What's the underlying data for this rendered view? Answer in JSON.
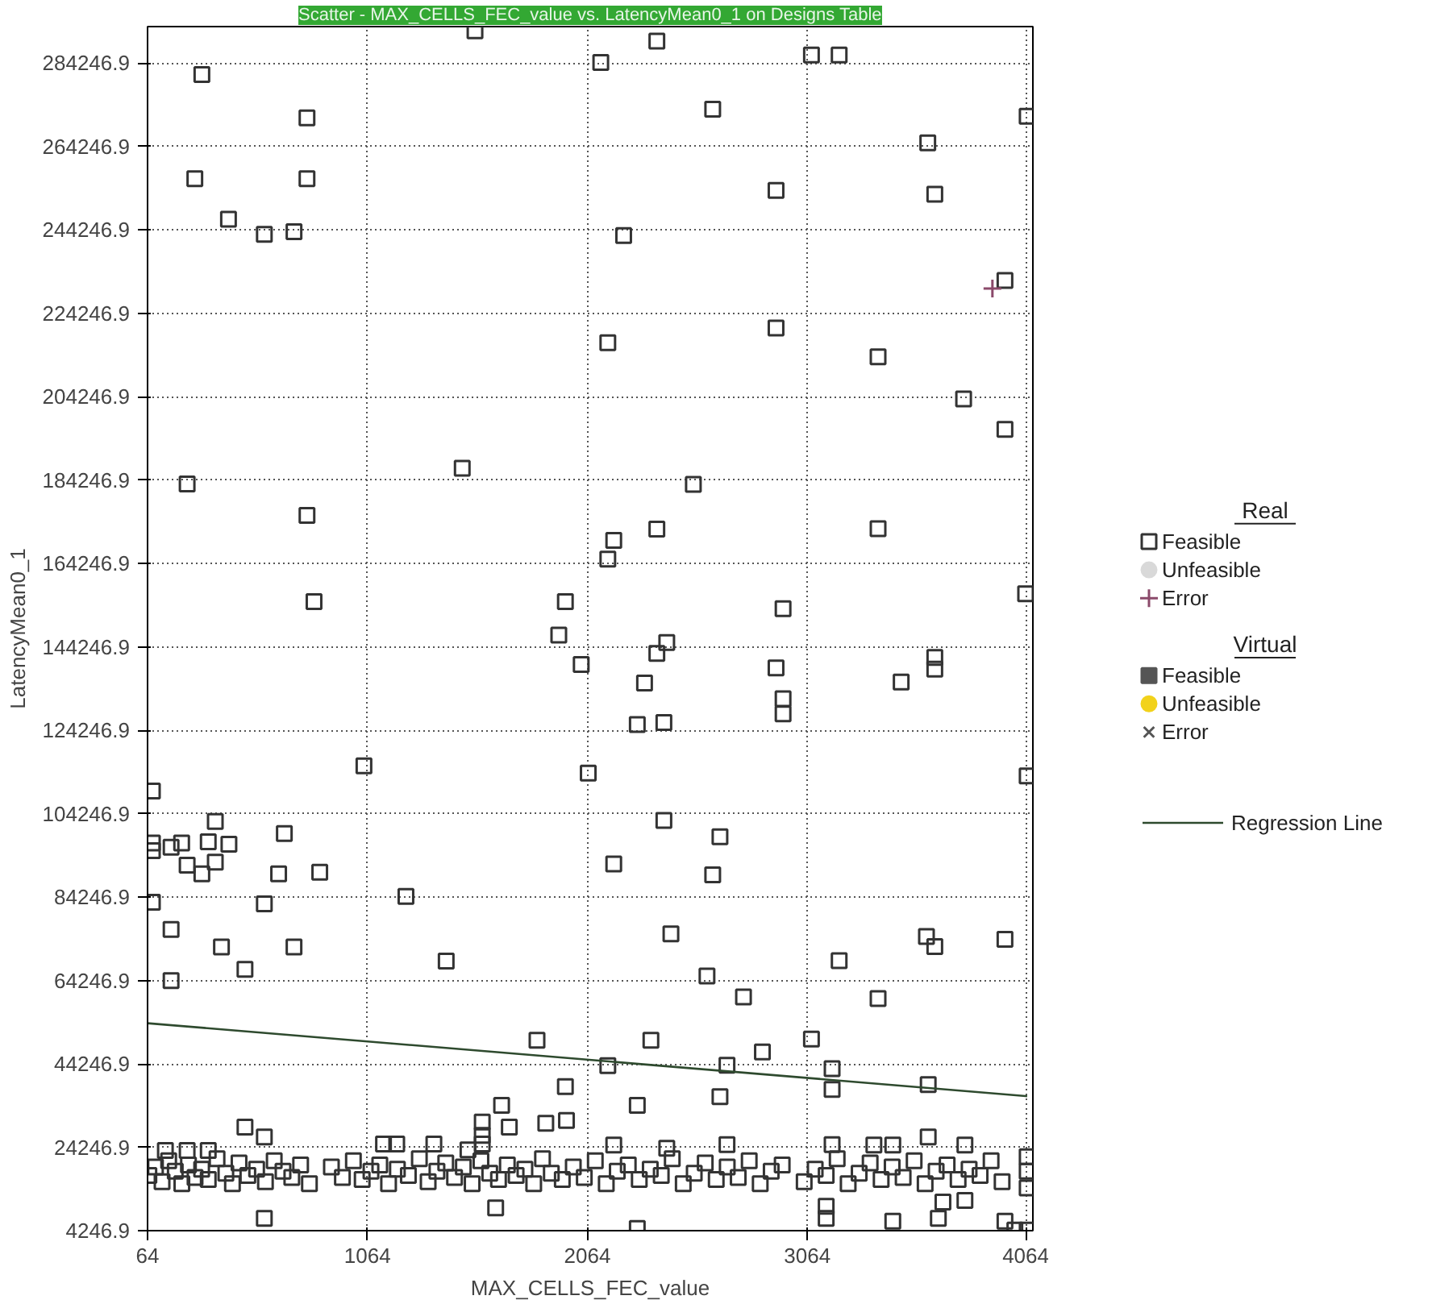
{
  "chart_data": {
    "type": "scatter",
    "title": "Scatter - MAX_CELLS_FEC_value vs. LatencyMean0_1 on Designs Table",
    "xlabel": "MAX_CELLS_FEC_value",
    "ylabel": "LatencyMean0_1",
    "legend_title": "Real",
    "annotations": [
      "Virtual"
    ],
    "xlim": [
      64,
      4090
    ],
    "ylim": [
      4246.9,
      293000
    ],
    "xticks": [
      64,
      1064,
      2064,
      3064,
      4064
    ],
    "yticks": [
      {
        "value": 4246.9,
        "label": "4246.9"
      },
      {
        "value": 24246.9,
        "label": "24246.9"
      },
      {
        "value": 44246.9,
        "label": "44246.9"
      },
      {
        "value": 64246.9,
        "label": "64246.9"
      },
      {
        "value": 84246.9,
        "label": "84246.9"
      },
      {
        "value": 104246.9,
        "label": "104246.9"
      },
      {
        "value": 124246.9,
        "label": "124246.9"
      },
      {
        "value": 144246.9,
        "label": "144246.9"
      },
      {
        "value": 164246.9,
        "label": "164246.9"
      },
      {
        "value": 184246.9,
        "label": "184246.9"
      },
      {
        "value": 204246.9,
        "label": "204246.9"
      },
      {
        "value": 224246.9,
        "label": "224246.9"
      },
      {
        "value": 244246.9,
        "label": "244246.9"
      },
      {
        "value": 264246.9,
        "label": "264246.9"
      },
      {
        "value": 284246.9,
        "label": "284246.9"
      }
    ],
    "grid": true,
    "legend": "right",
    "series": [
      {
        "name": "Feasible",
        "color": "#333333",
        "marker": "square",
        "x": [
          1553,
          311,
          789,
          279,
          789,
          432,
          595,
          730,
          1495,
          244,
          789,
          821,
          1964,
          1934,
          2380,
          2125,
          3083,
          3209,
          2634,
          4064,
          3612,
          2922,
          3644,
          2229,
          3963,
          2157,
          2922,
          3386,
          3775,
          3963,
          2546,
          2380,
          2184,
          2157,
          3386,
          4057,
          2954,
          2425,
          2380,
          2036,
          2922,
          2324,
          2954,
          2954,
          3491,
          3644,
          3644,
          2291,
          2412,
          2068,
          4064,
          2412,
          2667,
          2184,
          2634,
          2444,
          2608,
          2774,
          3209,
          3386,
          3606,
          3644,
          3963,
          2353,
          2860,
          3083,
          2157,
          2699,
          3177,
          3177,
          3614,
          2291,
          2667,
          3614,
          2291,
          3453,
          3150,
          3660,
          3681,
          3781,
          3963,
          4008,
          4064,
          3150,
          1048,
          86,
          86,
          86,
          171,
          219,
          372,
          340,
          434,
          244,
          311,
          372,
          686,
          660,
          847,
          86,
          595,
          1239,
          171,
          400,
          730,
          507,
          171,
          1422,
          1835,
          1964,
          1674,
          1586,
          1709,
          1875,
          1969,
          507,
          595,
          595,
          1647,
          1137,
          1197,
          1366,
          145,
          244,
          340,
          1586,
          1586,
          1521,
          2184,
          2699,
          3177,
          3367,
          3453,
          3781,
          2425,
          70,
          100,
          130,
          160,
          190,
          220,
          250,
          280,
          310,
          340,
          380,
          420,
          450,
          480,
          520,
          560,
          600,
          640,
          680,
          720,
          760,
          800,
          900,
          950,
          1000,
          1040,
          1080,
          1120,
          1160,
          1200,
          1250,
          1300,
          1340,
          1380,
          1420,
          1460,
          1500,
          1540,
          1580,
          1620,
          1660,
          1700,
          1740,
          1780,
          1820,
          1860,
          1900,
          1950,
          2000,
          2050,
          2100,
          2150,
          2200,
          2250,
          2300,
          2350,
          2400,
          2450,
          2500,
          2550,
          2600,
          2650,
          2700,
          2750,
          2800,
          2850,
          2900,
          2950,
          3050,
          3100,
          3150,
          3200,
          3250,
          3300,
          3350,
          3400,
          3450,
          3500,
          3550,
          3600,
          3650,
          3700,
          3750,
          3800,
          3850,
          3900,
          3950,
          4064,
          4064,
          4064
        ],
        "values": [
          292000,
          281500,
          271100,
          256500,
          256500,
          246800,
          243200,
          243800,
          187100,
          183300,
          175800,
          155100,
          155100,
          147100,
          289500,
          284400,
          286200,
          286200,
          273200,
          271500,
          265100,
          253700,
          252800,
          242900,
          232100,
          217200,
          220700,
          213800,
          203700,
          196400,
          183200,
          172500,
          169800,
          165300,
          172600,
          157000,
          153400,
          145300,
          142700,
          140000,
          139200,
          135600,
          131800,
          128200,
          135800,
          141700,
          138900,
          125600,
          126100,
          114000,
          113300,
          102600,
          98700,
          92200,
          89600,
          75400,
          65300,
          60300,
          69000,
          59900,
          74800,
          72400,
          74100,
          49900,
          47100,
          50200,
          43800,
          43900,
          43100,
          38100,
          39300,
          34300,
          36400,
          26700,
          4800,
          6500,
          7200,
          7200,
          11100,
          11500,
          6500,
          4400,
          4400,
          10100,
          115700,
          109700,
          97200,
          83000,
          96200,
          97200,
          102400,
          97500,
          96900,
          91900,
          89800,
          92600,
          99500,
          89800,
          90200,
          95400,
          82600,
          84400,
          76500,
          72300,
          72300,
          66900,
          64200,
          68900,
          49900,
          38800,
          34300,
          30300,
          29100,
          30000,
          30700,
          29100,
          26700,
          7200,
          9700,
          25000,
          25000,
          25000,
          23500,
          23500,
          23500,
          27100,
          25000,
          23600,
          24800,
          24900,
          24900,
          24800,
          24800,
          24800,
          24000,
          17500,
          19500,
          16000,
          21000,
          18500,
          15500,
          20000,
          17000,
          19000,
          16500,
          21500,
          18000,
          15500,
          20500,
          17500,
          19000,
          16000,
          21000,
          18500,
          17000,
          20000,
          15500,
          19500,
          17000,
          21000,
          16500,
          18500,
          20000,
          15500,
          19000,
          17500,
          21500,
          16000,
          18500,
          20500,
          17000,
          19500,
          15500,
          21000,
          18000,
          16500,
          20000,
          17500,
          19000,
          15500,
          21500,
          18000,
          16500,
          19500,
          17000,
          21000,
          15500,
          18500,
          20000,
          16500,
          19000,
          17500,
          21500,
          15500,
          18000,
          20500,
          16500,
          19500,
          17000,
          21000,
          15500,
          18500,
          20000,
          16000,
          19000,
          17500,
          21500,
          15500,
          18000,
          20500,
          16500,
          19500,
          17000,
          21000,
          15500,
          18500,
          20000,
          16500,
          19000,
          17500,
          21000,
          16000,
          14500,
          18500,
          22000
        ]
      },
      {
        "name": "Unfeasible",
        "color": "#d9d9d9",
        "marker": "circle"
      },
      {
        "name": "Error",
        "color": "#8b4a6b",
        "marker": "cross",
        "x": [
          3906
        ],
        "values": [
          230200
        ]
      },
      {
        "name": "Feasible",
        "color": "#555555",
        "marker": "square"
      },
      {
        "name": "Unfeasible",
        "color": "#f2d21b",
        "marker": "circle"
      },
      {
        "name": "Error",
        "color": "#555555",
        "marker": "x"
      },
      {
        "name": "Regression Line",
        "type": "line",
        "color": "#2e4a2e",
        "x": [
          64,
          4064
        ],
        "values": [
          54000,
          36500
        ]
      }
    ]
  }
}
